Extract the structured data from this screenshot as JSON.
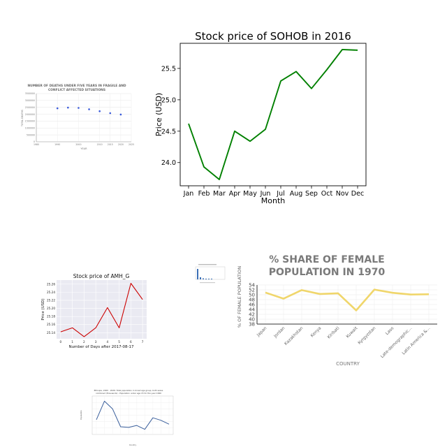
{
  "charts": {
    "deaths": {
      "title_line1": "NUMBER OF DEATHS UNDER FIVE YEARS IN FRAGILE AND",
      "title_line2": "CONFLICT AFFECTED SITUATIONS",
      "xlabel": "YEAR",
      "ylabel": "TOTAL DEATHS"
    },
    "sohob": {
      "title": "Stock price of SOHOB in 2016",
      "xlabel": "Month",
      "ylabel": "Price (USD)"
    },
    "amh": {
      "title": "Stock price of AMH_G",
      "xlabel": "Number of Days after 2017-08-17",
      "ylabel": "Price (USD)"
    },
    "female": {
      "title_line1": "% SHARE OF FEMALE",
      "title_line2": "POPULATION IN 1970",
      "xlabel": "COUNTRY",
      "ylabel": "% OF FEMALE POPULATION",
      "color": "#f0d66b"
    },
    "ethiopia": {
      "title_line1": "Ethiopia, 2000 - 2026: Total population in broad age group, both sexes",
      "title_line2": "combined (thousands) - Population under age 15 for the year 1990",
      "xlabel": "Country",
      "ylabel": "Population"
    }
  },
  "chart_data": [
    {
      "id": "deaths",
      "type": "scatter",
      "title": "NUMBER OF DEATHS UNDER FIVE YEARS IN FRAGILE AND CONFLICT AFFECTED SITUATIONS",
      "xlabel": "YEAR",
      "ylabel": "TOTAL DEATHS",
      "x": [
        1990,
        1995,
        2000,
        2005,
        2010,
        2015,
        2020
      ],
      "y": [
        2430000,
        2480000,
        2460000,
        2360000,
        2220000,
        2080000,
        1980000
      ],
      "xlim": [
        1980,
        2025
      ],
      "ylim": [
        0,
        3500000
      ],
      "xticks": [
        "1980",
        "1990",
        "2000",
        "2010",
        "2015",
        "2020",
        "2025"
      ],
      "yticks": [
        "0",
        "500000",
        "1000000",
        "1500000",
        "2000000",
        "2500000",
        "3000000",
        "3500000"
      ],
      "color": "#3b5bdb",
      "grid": true
    },
    {
      "id": "sohob",
      "type": "line",
      "title": "Stock price of SOHOB in 2016",
      "xlabel": "Month",
      "ylabel": "Price (USD)",
      "categories": [
        "Jan",
        "Feb",
        "Mar",
        "Apr",
        "May",
        "Jun",
        "Jul",
        "Aug",
        "Sep",
        "Oct",
        "Nov",
        "Dec"
      ],
      "values": [
        24.62,
        23.93,
        23.73,
        24.5,
        24.34,
        24.53,
        25.3,
        25.45,
        25.18,
        25.48,
        25.8,
        25.79
      ],
      "ylim": [
        23.63,
        25.9
      ],
      "yticks": [
        "24.0",
        "24.5",
        "25.0",
        "25.5"
      ],
      "color": "#008000",
      "grid": false
    },
    {
      "id": "amh",
      "type": "line",
      "title": "Stock price of AMH_G",
      "xlabel": "Number of Days after 2017-08-17",
      "ylabel": "Price (USD)",
      "x": [
        0,
        1,
        2,
        3,
        4,
        5,
        6,
        7
      ],
      "y": [
        25.142,
        25.152,
        25.13,
        25.152,
        25.202,
        25.152,
        25.262,
        25.222
      ],
      "xlim": [
        -0.35,
        7.35
      ],
      "ylim": [
        25.125,
        25.27
      ],
      "yticks": [
        "25.14",
        "25.16",
        "25.18",
        "25.20",
        "25.22",
        "25.24",
        "25.26"
      ],
      "color": "#cc0000",
      "background": "#eaeaf2",
      "grid": true
    },
    {
      "id": "female",
      "type": "line",
      "title": "% SHARE OF FEMALE POPULATION IN 1970",
      "xlabel": "COUNTRY",
      "ylabel": "% OF FEMALE POPULATION",
      "categories": [
        "Japan",
        "Jordan",
        "Kazakhstan",
        "Kenya",
        "Kiribati",
        "Kuwait",
        "Kyrgyzstan",
        "Laos",
        "Late-demographic...",
        "Latin America &..."
      ],
      "values": [
        50.9,
        48.4,
        51.9,
        50.3,
        50.6,
        43.6,
        52.1,
        50.8,
        50.1,
        50.2
      ],
      "ylim": [
        38,
        54
      ],
      "yticks": [
        "38",
        "40",
        "42",
        "44",
        "46",
        "48",
        "50",
        "52",
        "54"
      ],
      "color": "#f0d66b",
      "grid": true
    },
    {
      "id": "ethiopia",
      "type": "line",
      "title": "Ethiopia, 2000 - 2026: Total population in broad age group, both sexes combined (thousands) - Population under age 15 for the year 1990",
      "xlabel": "Country",
      "ylabel": "Population",
      "values": [
        23000,
        52000,
        40000,
        12000,
        11000,
        14000,
        8000,
        26000,
        22000,
        16000
      ],
      "ylim": [
        0,
        60000
      ],
      "color": "#3a5f9c",
      "grid": true
    }
  ]
}
